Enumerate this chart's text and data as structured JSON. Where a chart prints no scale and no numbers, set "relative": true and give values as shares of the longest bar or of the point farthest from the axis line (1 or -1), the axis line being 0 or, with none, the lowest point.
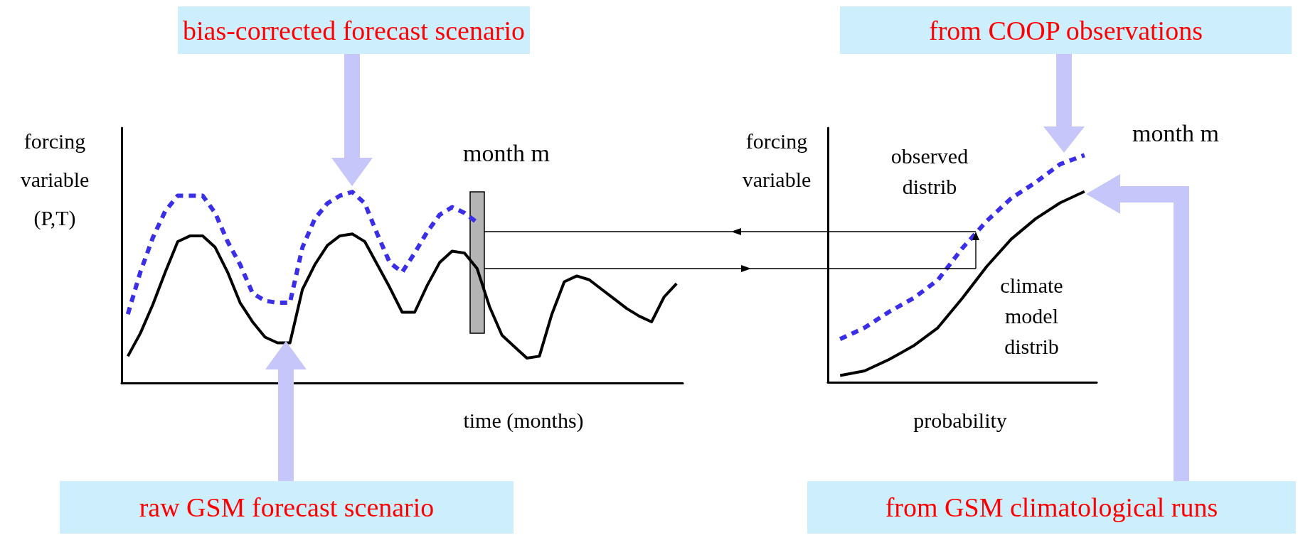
{
  "chart_data": [
    {
      "type": "line",
      "relative": true,
      "ylabel": "forcing variable (P,T)",
      "xlabel": "time (months)",
      "annotations": [
        "bias-corrected forecast scenario",
        "raw GSM forecast scenario",
        "month m"
      ],
      "categories": [
        null,
        null,
        null,
        null,
        null,
        null,
        null,
        null,
        null,
        null,
        null,
        null,
        null,
        null,
        null,
        null,
        null,
        null,
        null,
        null,
        null,
        null,
        null,
        null,
        null,
        null,
        null,
        null,
        null,
        null,
        null,
        null,
        null,
        null,
        null,
        null,
        null,
        null,
        null,
        null,
        null,
        null,
        null,
        null,
        null
      ],
      "series": [
        {
          "color": "#3a2ee8",
          "line_style": "dashed",
          "values": [
            0.36,
            0.58,
            0.76,
            0.9,
            0.98,
            0.98,
            0.98,
            0.89,
            0.74,
            0.62,
            0.47,
            0.43,
            0.42,
            0.42,
            0.71,
            0.86,
            0.94,
            0.98,
            1,
            0.94,
            0.78,
            0.63,
            0.58,
            0.68,
            0.79,
            0.88,
            0.92,
            0.89,
            0.84,
            null,
            null,
            null,
            null,
            null,
            null,
            null,
            null,
            null,
            null,
            null,
            null,
            null,
            null,
            null,
            null
          ]
        },
        {
          "color": "#000000",
          "line_style": "solid",
          "values": [
            0.14,
            0.26,
            0.41,
            0.58,
            0.74,
            0.77,
            0.77,
            0.71,
            0.58,
            0.42,
            0.32,
            0.24,
            0.21,
            0.21,
            0.49,
            0.62,
            0.72,
            0.77,
            0.78,
            0.74,
            0.62,
            0.5,
            0.37,
            0.37,
            0.51,
            0.63,
            0.69,
            0.68,
            0.6,
            0.4,
            0.25,
            0.19,
            0.13,
            0.14,
            0.36,
            0.53,
            0.56,
            0.54,
            0.49,
            0.44,
            0.39,
            0.35,
            0.32,
            0.45,
            0.52
          ]
        }
      ]
    },
    {
      "type": "line",
      "relative": true,
      "ylabel": "forcing variable",
      "xlabel": "probability",
      "annotations": [
        "from COOP observations",
        "from GSM climatological runs",
        "month m"
      ],
      "categories": [
        null,
        null,
        null,
        null,
        null,
        null,
        null,
        null,
        null,
        null,
        null
      ],
      "series": [
        {
          "name": "observed distrib",
          "color": "#3a2ee8",
          "line_style": "dashed",
          "values": [
            0.19,
            0.24,
            0.31,
            0.37,
            0.45,
            0.59,
            0.71,
            0.81,
            0.88,
            0.96,
            1
          ]
        },
        {
          "name": "climate model distrib",
          "color": "#000000",
          "line_style": "solid",
          "values": [
            0.03,
            0.05,
            0.1,
            0.16,
            0.24,
            0.37,
            0.51,
            0.63,
            0.72,
            0.79,
            0.84
          ]
        }
      ]
    }
  ]
}
